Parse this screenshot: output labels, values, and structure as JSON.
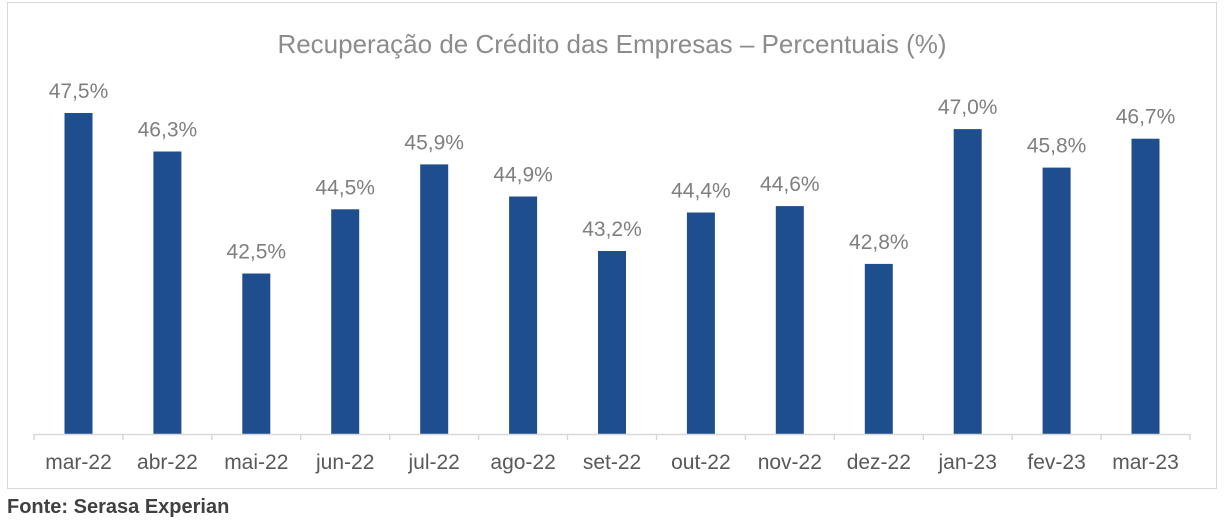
{
  "chart_data": {
    "type": "bar",
    "title": "Recuperação de Crédito das Empresas – Percentuais (%)",
    "xlabel": "",
    "ylabel": "",
    "categories": [
      "mar-22",
      "abr-22",
      "mai-22",
      "jun-22",
      "jul-22",
      "ago-22",
      "set-22",
      "out-22",
      "nov-22",
      "dez-22",
      "jan-23",
      "fev-23",
      "mar-23"
    ],
    "values": [
      47.5,
      46.3,
      42.5,
      44.5,
      45.9,
      44.9,
      43.2,
      44.4,
      44.6,
      42.8,
      47.0,
      45.8,
      46.7
    ],
    "data_labels": [
      "47,5%",
      "46,3%",
      "42,5%",
      "44,5%",
      "45,9%",
      "44,9%",
      "43,2%",
      "44,4%",
      "44,6%",
      "42,8%",
      "47,0%",
      "45,8%",
      "46,7%"
    ],
    "ylim": [
      37.5,
      47.5
    ],
    "grid": false,
    "legend": "none",
    "bar_color": "#1f4e8f",
    "axis_color": "#d9d9d9"
  },
  "source": "Fonte: Serasa Experian"
}
